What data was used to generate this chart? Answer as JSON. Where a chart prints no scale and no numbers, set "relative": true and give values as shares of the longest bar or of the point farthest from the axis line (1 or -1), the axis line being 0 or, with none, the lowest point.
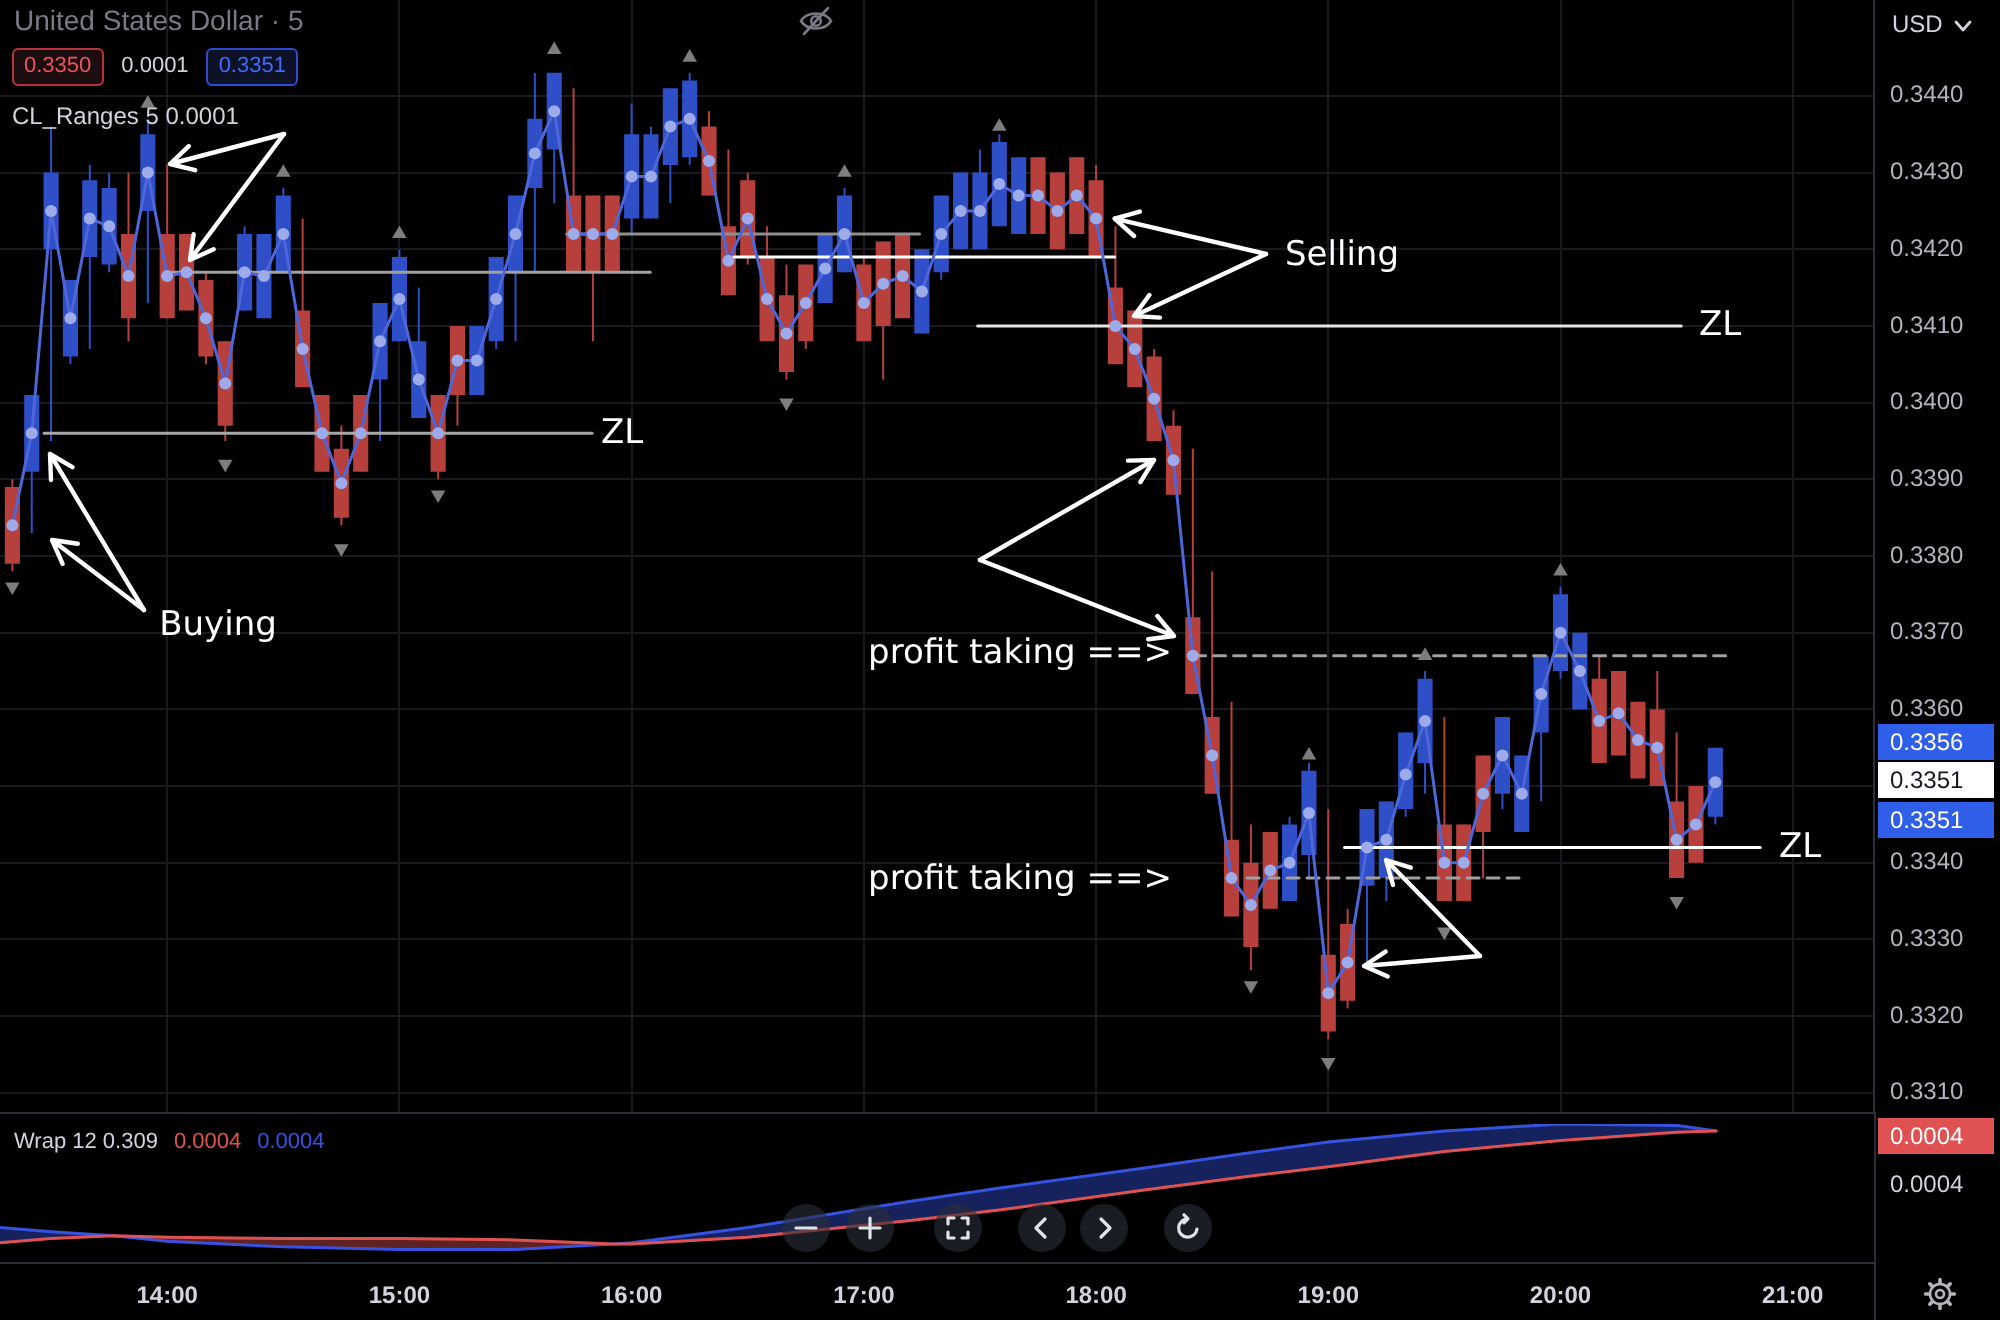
{
  "chart_data": [
    {
      "type": "candlestick",
      "title": "United States Dollar · 5",
      "subtitle": "CL_Ranges 5 0.0001",
      "ylabel": "USD",
      "x": [
        13.3333,
        13.4167,
        13.5,
        13.5833,
        13.6667,
        13.75,
        13.8333,
        13.9167,
        14,
        14.0833,
        14.1667,
        14.25,
        14.3333,
        14.4167,
        14.5,
        14.5833,
        14.6667,
        14.75,
        14.8333,
        14.9167,
        15,
        15.0833,
        15.1667,
        15.25,
        15.3333,
        15.4167,
        15.5,
        15.5833,
        15.6667,
        15.75,
        15.8333,
        15.9167,
        16,
        16.0833,
        16.1667,
        16.25,
        16.3333,
        16.4167,
        16.5,
        16.5833,
        16.6667,
        16.75,
        16.8333,
        16.9167,
        17,
        17.0833,
        17.1667,
        17.25,
        17.3333,
        17.4167,
        17.5,
        17.5833,
        17.6667,
        17.75,
        17.8333,
        17.9167,
        18,
        18.0833,
        18.1667,
        18.25,
        18.3333,
        18.4167,
        18.5,
        18.5833,
        18.6667,
        18.75,
        18.8333,
        18.9167,
        19,
        19.0833,
        19.1667,
        19.25,
        19.3333,
        19.4167,
        19.5,
        19.5833,
        19.6667,
        19.75,
        19.8333,
        19.9167,
        20,
        20.0833,
        20.1667,
        20.25,
        20.3333,
        20.4167,
        20.5,
        20.5833,
        20.6667
      ],
      "ohlc": [
        [
          0.3389,
          0.339,
          0.3378,
          0.3379
        ],
        [
          0.3391,
          0.3401,
          0.3383,
          0.3401
        ],
        [
          0.342,
          0.3436,
          0.3395,
          0.343
        ],
        [
          0.3406,
          0.3416,
          0.3405,
          0.3416
        ],
        [
          0.3419,
          0.3431,
          0.3407,
          0.3429
        ],
        [
          0.3418,
          0.343,
          0.3417,
          0.3428
        ],
        [
          0.3422,
          0.343,
          0.3408,
          0.3411
        ],
        [
          0.3425,
          0.3437,
          0.3413,
          0.3435
        ],
        [
          0.3422,
          0.3431,
          0.3411,
          0.3411
        ],
        [
          0.3422,
          0.3422,
          0.3412,
          0.3412
        ],
        [
          0.3416,
          0.3417,
          0.3405,
          0.3406
        ],
        [
          0.3408,
          0.3408,
          0.3395,
          0.3397
        ],
        [
          0.3412,
          0.3423,
          0.3412,
          0.3422
        ],
        [
          0.3411,
          0.3422,
          0.3411,
          0.3422
        ],
        [
          0.3417,
          0.3428,
          0.3417,
          0.3427
        ],
        [
          0.3412,
          0.3424,
          0.3402,
          0.3402
        ],
        [
          0.3401,
          0.3401,
          0.3391,
          0.3391
        ],
        [
          0.3394,
          0.3397,
          0.3384,
          0.3385
        ],
        [
          0.3401,
          0.3401,
          0.3391,
          0.3391
        ],
        [
          0.3403,
          0.3413,
          0.3395,
          0.3413
        ],
        [
          0.3408,
          0.342,
          0.3408,
          0.3419
        ],
        [
          0.3398,
          0.3415,
          0.3398,
          0.3408
        ],
        [
          0.3401,
          0.3401,
          0.339,
          0.3391
        ],
        [
          0.341,
          0.341,
          0.3397,
          0.3401
        ],
        [
          0.3401,
          0.341,
          0.3401,
          0.341
        ],
        [
          0.3408,
          0.3419,
          0.3407,
          0.3419
        ],
        [
          0.3417,
          0.3427,
          0.3408,
          0.3427
        ],
        [
          0.3428,
          0.3443,
          0.3417,
          0.3437
        ],
        [
          0.3433,
          0.3443,
          0.3426,
          0.3443
        ],
        [
          0.3427,
          0.3441,
          0.3417,
          0.3417
        ],
        [
          0.3427,
          0.3427,
          0.3408,
          0.3417
        ],
        [
          0.3427,
          0.3427,
          0.3417,
          0.3417
        ],
        [
          0.3424,
          0.3439,
          0.3422,
          0.3435
        ],
        [
          0.3424,
          0.3436,
          0.3424,
          0.3435
        ],
        [
          0.3431,
          0.3441,
          0.3426,
          0.3441
        ],
        [
          0.3432,
          0.3443,
          0.3431,
          0.3442
        ],
        [
          0.3436,
          0.3438,
          0.3427,
          0.3427
        ],
        [
          0.3423,
          0.3433,
          0.3414,
          0.3414
        ],
        [
          0.3429,
          0.343,
          0.3418,
          0.3419
        ],
        [
          0.3419,
          0.3423,
          0.3408,
          0.3408
        ],
        [
          0.3414,
          0.3418,
          0.3403,
          0.3404
        ],
        [
          0.3418,
          0.3418,
          0.3407,
          0.3408
        ],
        [
          0.3413,
          0.3422,
          0.3413,
          0.3422
        ],
        [
          0.3417,
          0.3428,
          0.3417,
          0.3427
        ],
        [
          0.3418,
          0.3419,
          0.3408,
          0.3408
        ],
        [
          0.3421,
          0.3421,
          0.3403,
          0.341
        ],
        [
          0.3422,
          0.3422,
          0.3411,
          0.3411
        ],
        [
          0.3409,
          0.342,
          0.3409,
          0.342
        ],
        [
          0.3417,
          0.3427,
          0.3416,
          0.3427
        ],
        [
          0.342,
          0.343,
          0.342,
          0.343
        ],
        [
          0.342,
          0.3433,
          0.342,
          0.343
        ],
        [
          0.3423,
          0.3435,
          0.3423,
          0.3434
        ],
        [
          0.3422,
          0.3432,
          0.3422,
          0.3432
        ],
        [
          0.3432,
          0.3432,
          0.3422,
          0.3422
        ],
        [
          0.343,
          0.343,
          0.342,
          0.342
        ],
        [
          0.3432,
          0.3432,
          0.3422,
          0.3422
        ],
        [
          0.3429,
          0.3431,
          0.3419,
          0.3419
        ],
        [
          0.3415,
          0.3423,
          0.3405,
          0.3405
        ],
        [
          0.3412,
          0.3412,
          0.3402,
          0.3402
        ],
        [
          0.3406,
          0.3407,
          0.3395,
          0.3395
        ],
        [
          0.3397,
          0.3399,
          0.3388,
          0.3388
        ],
        [
          0.3372,
          0.3394,
          0.3362,
          0.3362
        ],
        [
          0.3359,
          0.3378,
          0.3349,
          0.3349
        ],
        [
          0.3343,
          0.3361,
          0.3333,
          0.3333
        ],
        [
          0.334,
          0.3345,
          0.3326,
          0.3329
        ],
        [
          0.3344,
          0.3344,
          0.3334,
          0.3334
        ],
        [
          0.3335,
          0.3346,
          0.3335,
          0.3345
        ],
        [
          0.3341,
          0.3353,
          0.3338,
          0.3352
        ],
        [
          0.3328,
          0.3347,
          0.3317,
          0.3318
        ],
        [
          0.3332,
          0.3334,
          0.3321,
          0.3322
        ],
        [
          0.3337,
          0.3347,
          0.3327,
          0.3347
        ],
        [
          0.3338,
          0.3348,
          0.3335,
          0.3348
        ],
        [
          0.3347,
          0.3357,
          0.3346,
          0.3357
        ],
        [
          0.3353,
          0.3365,
          0.3349,
          0.3364
        ],
        [
          0.3345,
          0.3359,
          0.3335,
          0.3335
        ],
        [
          0.3345,
          0.3345,
          0.3335,
          0.3335
        ],
        [
          0.3354,
          0.3354,
          0.3338,
          0.3344
        ],
        [
          0.3349,
          0.3359,
          0.3347,
          0.3359
        ],
        [
          0.3344,
          0.3354,
          0.3344,
          0.3354
        ],
        [
          0.3357,
          0.3367,
          0.3348,
          0.3367
        ],
        [
          0.3365,
          0.3376,
          0.3364,
          0.3375
        ],
        [
          0.336,
          0.337,
          0.336,
          0.337
        ],
        [
          0.3364,
          0.3367,
          0.3353,
          0.3353
        ],
        [
          0.3365,
          0.3365,
          0.3354,
          0.3354
        ],
        [
          0.3361,
          0.3361,
          0.3351,
          0.3351
        ],
        [
          0.336,
          0.3365,
          0.335,
          0.335
        ],
        [
          0.3348,
          0.3357,
          0.3338,
          0.3338
        ],
        [
          0.335,
          0.335,
          0.334,
          0.334
        ],
        [
          0.3346,
          0.3355,
          0.3345,
          0.3355
        ]
      ],
      "colors": [
        "#b8403c",
        "#2e4fc7",
        "#2e4fc7",
        "#2e4fc7",
        "#2e4fc7",
        "#2e4fc7",
        "#b8403c",
        "#2e4fc7",
        "#b8403c",
        "#b8403c",
        "#b8403c",
        "#b8403c",
        "#2e4fc7",
        "#2e4fc7",
        "#2e4fc7",
        "#b8403c",
        "#b8403c",
        "#b8403c",
        "#b8403c",
        "#2e4fc7",
        "#2e4fc7",
        "#2e4fc7",
        "#b8403c",
        "#b8403c",
        "#2e4fc7",
        "#2e4fc7",
        "#2e4fc7",
        "#2e4fc7",
        "#2e4fc7",
        "#b8403c",
        "#b8403c",
        "#b8403c",
        "#2e4fc7",
        "#2e4fc7",
        "#2e4fc7",
        "#2e4fc7",
        "#b8403c",
        "#b8403c",
        "#b8403c",
        "#b8403c",
        "#b8403c",
        "#b8403c",
        "#2e4fc7",
        "#2e4fc7",
        "#b8403c",
        "#b8403c",
        "#b8403c",
        "#2e4fc7",
        "#2e4fc7",
        "#2e4fc7",
        "#2e4fc7",
        "#2e4fc7",
        "#2e4fc7",
        "#b8403c",
        "#b8403c",
        "#b8403c",
        "#b8403c",
        "#b8403c",
        "#b8403c",
        "#b8403c",
        "#b8403c",
        "#b8403c",
        "#b8403c",
        "#b8403c",
        "#b8403c",
        "#b8403c",
        "#2e4fc7",
        "#2e4fc7",
        "#b8403c",
        "#b8403c",
        "#2e4fc7",
        "#2e4fc7",
        "#2e4fc7",
        "#2e4fc7",
        "#b8403c",
        "#b8403c",
        "#b8403c",
        "#2e4fc7",
        "#2e4fc7",
        "#2e4fc7",
        "#2e4fc7",
        "#2e4fc7",
        "#b8403c",
        "#b8403c",
        "#b8403c",
        "#b8403c",
        "#b8403c",
        "#b8403c",
        "#2e4fc7"
      ],
      "series": [
        {
          "type": "line",
          "color": "#4d66d9",
          "marker": "circle",
          "values": [
            0.3384,
            0.3396,
            0.3425,
            0.3411,
            0.3424,
            0.3423,
            0.34165,
            0.343,
            0.34165,
            0.3417,
            0.3411,
            0.34025,
            0.3417,
            0.34165,
            0.3422,
            0.3407,
            0.3396,
            0.33895,
            0.3396,
            0.3408,
            0.34135,
            0.3403,
            0.3396,
            0.34055,
            0.34055,
            0.34135,
            0.3422,
            0.34325,
            0.3438,
            0.3422,
            0.3422,
            0.3422,
            0.34295,
            0.34295,
            0.3436,
            0.3437,
            0.34315,
            0.34185,
            0.3424,
            0.34135,
            0.3409,
            0.3413,
            0.34175,
            0.3422,
            0.3413,
            0.34155,
            0.34165,
            0.34145,
            0.3422,
            0.3425,
            0.3425,
            0.34285,
            0.3427,
            0.3427,
            0.3425,
            0.3427,
            0.3424,
            0.341,
            0.3407,
            0.34005,
            0.33925,
            0.3367,
            0.3354,
            0.3338,
            0.33345,
            0.3339,
            0.334,
            0.33465,
            0.3323,
            0.3327,
            0.3342,
            0.3343,
            0.33515,
            0.33585,
            0.334,
            0.334,
            0.3349,
            0.3354,
            0.3349,
            0.3362,
            0.337,
            0.3365,
            0.33585,
            0.33595,
            0.3356,
            0.3355,
            0.3343,
            0.3345,
            0.33505
          ]
        },
        {
          "type": "scatter",
          "color": "#7d7d7d",
          "marker": "triangle",
          "x": [
            13.3333,
            13.9167,
            14.25,
            14.5,
            14.75,
            15,
            15.1667,
            15.6667,
            16.25,
            16.6667,
            16.9167,
            17.5833,
            18.6667,
            18.9167,
            19,
            19.4167,
            19.5,
            20,
            20.5
          ],
          "values": [
            0.3376,
            0.3439,
            0.3392,
            0.343,
            0.3381,
            0.3422,
            0.3388,
            0.3446,
            0.3445,
            0.34,
            0.343,
            0.3436,
            0.3324,
            0.3354,
            0.3314,
            0.3367,
            0.3331,
            0.3378,
            0.3335
          ]
        },
        {
          "type": "line",
          "color": "#a0a0a0",
          "x": [
            14.0,
            16.08
          ],
          "values": [
            0.3417,
            0.3417
          ]
        },
        {
          "type": "line",
          "color": "#a8a8a8",
          "x": [
            13.47,
            15.83
          ],
          "values": [
            0.3396,
            0.3396
          ]
        },
        {
          "type": "line",
          "color": "#8f8f8f",
          "x": [
            15.72,
            17.24
          ],
          "values": [
            0.3422,
            0.3422
          ]
        },
        {
          "type": "line",
          "color": "#ffffff",
          "x": [
            16.44,
            18.08
          ],
          "values": [
            0.3419,
            0.3419
          ]
        },
        {
          "type": "line",
          "color": "#e6e6e6",
          "x": [
            17.49,
            20.52
          ],
          "values": [
            0.341,
            0.341
          ]
        },
        {
          "type": "line",
          "color": "#ffffff",
          "x": [
            19.07,
            20.86
          ],
          "values": [
            0.3342,
            0.3342
          ]
        },
        {
          "type": "line",
          "color": "#a0a0a0",
          "line_style": "dashed",
          "x": [
            18.42,
            20.73
          ],
          "values": [
            0.3367,
            0.3367
          ]
        },
        {
          "type": "line",
          "color": "#a0a0a0",
          "line_style": "dashed",
          "x": [
            18.65,
            19.83
          ],
          "values": [
            0.3338,
            0.3338
          ]
        }
      ],
      "xlim": [
        13.28,
        21.35
      ],
      "ylim": [
        0.33075,
        0.34525
      ],
      "xticks": [
        14,
        15,
        16,
        17,
        18,
        19,
        20,
        21
      ],
      "yticks": [
        {
          "value": 0.331,
          "label": "0.3310"
        },
        {
          "value": 0.332,
          "label": "0.3320"
        },
        {
          "value": 0.333,
          "label": "0.3330"
        },
        {
          "value": 0.334,
          "label": "0.3340"
        },
        {
          "value": 0.335,
          "label": null
        },
        {
          "value": 0.336,
          "label": "0.3360"
        },
        {
          "value": 0.337,
          "label": "0.3370"
        },
        {
          "value": 0.338,
          "label": "0.3380"
        },
        {
          "value": 0.339,
          "label": "0.3390"
        },
        {
          "value": 0.34,
          "label": "0.3400"
        },
        {
          "value": 0.341,
          "label": "0.3410"
        },
        {
          "value": 0.342,
          "label": "0.3420"
        },
        {
          "value": 0.343,
          "label": "0.3430"
        },
        {
          "value": 0.344,
          "label": "0.3440"
        }
      ],
      "grid": true,
      "tick_labels": "y",
      "annotations": [
        "0.3350",
        "0.0001",
        "0.3351",
        "0.3356",
        "0.3351",
        "0.3351",
        "Buying",
        {
          "text": "Selling",
          "x": 18.08,
          "y": 0.3424
        },
        "ZL",
        "ZL",
        "ZL",
        "profit taking ==>",
        "profit taking ==>"
      ]
    },
    {
      "type": "line",
      "title": "Wrap 12 0.309",
      "relative": true,
      "x": [
        13.28,
        13.5,
        13.77,
        14,
        14.5,
        15,
        15.5,
        15.92,
        16,
        16.5,
        17.2,
        17.6,
        18.2,
        18.7,
        19,
        19.5,
        20,
        20.5,
        20.67
      ],
      "series": [
        {
          "color": "#e05252",
          "values": [
            0.14,
            0.17,
            0.19,
            0.18,
            0.17,
            0.17,
            0.16,
            0.13,
            0.13,
            0.18,
            0.3,
            0.38,
            0.52,
            0.63,
            0.69,
            0.8,
            0.88,
            0.94,
            0.95
          ],
          "lower": [
            null,
            null,
            0.19,
            0.15,
            0.11,
            0.09,
            0.09,
            0.13,
            null,
            null,
            null,
            null,
            null,
            null,
            null,
            null,
            null,
            null,
            null
          ],
          "upper": [
            null,
            null,
            0.19,
            0.18,
            0.17,
            0.17,
            0.16,
            0.13,
            null,
            null,
            null,
            null,
            null,
            null,
            null,
            null,
            null,
            null,
            null
          ]
        },
        {
          "color": "#3552e0",
          "values": [
            0.25,
            0.22,
            0.19,
            0.15,
            0.11,
            0.09,
            0.09,
            0.13,
            0.14,
            0.25,
            0.44,
            0.54,
            0.68,
            0.8,
            0.87,
            0.95,
            1,
            0.99,
            0.95
          ],
          "lower": [
            0.14,
            0.17,
            0.19,
            null,
            null,
            null,
            null,
            0.13,
            0.13,
            0.18,
            0.3,
            0.38,
            0.52,
            0.63,
            0.69,
            0.8,
            0.88,
            0.94,
            0.95
          ],
          "upper": [
            0.25,
            0.22,
            0.19,
            null,
            null,
            null,
            null,
            0.13,
            0.14,
            0.25,
            0.44,
            0.54,
            0.68,
            0.8,
            0.87,
            0.95,
            1,
            0.99,
            0.95
          ]
        }
      ],
      "xlim": [
        13.28,
        21.35
      ],
      "xticks": [
        {
          "value": 14,
          "label": "14:00"
        },
        {
          "value": 15,
          "label": "15:00"
        },
        {
          "value": 16,
          "label": "16:00"
        },
        {
          "value": 17,
          "label": "17:00"
        },
        {
          "value": 18,
          "label": "18:00"
        },
        {
          "value": 19,
          "label": "19:00"
        },
        {
          "value": 20,
          "label": "20:00"
        },
        {
          "value": 21,
          "label": "21:00"
        }
      ],
      "tick_labels": "x",
      "annotations": [
        "0.0004",
        "0.0004",
        "0.0004",
        "0.0004"
      ]
    }
  ]
}
